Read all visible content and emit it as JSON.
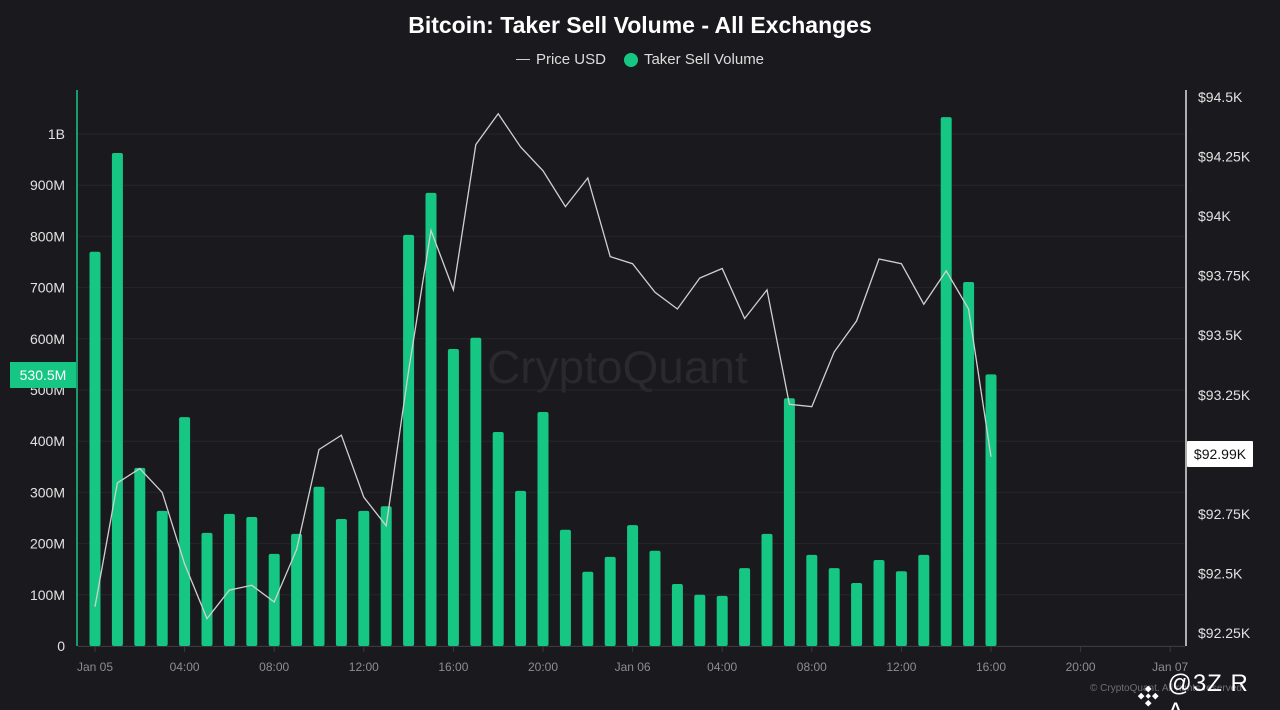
{
  "title": "Bitcoin: Taker Sell Volume - All Exchanges",
  "legend": [
    {
      "label": "Price USD",
      "marker": "line",
      "color": "#cfcfcf"
    },
    {
      "label": "Taker Sell Volume",
      "marker": "dot",
      "color": "#16c784"
    }
  ],
  "watermark": "CryptoQuant",
  "copyright": "© CryptoQuant. All rights reserved",
  "user_watermark": "@3Z R A_",
  "colors": {
    "background": "#1a191d",
    "bar": "#16c784",
    "line": "#d0d0d0",
    "grid": "#26252a"
  },
  "current_labels": {
    "volume": "530.5M",
    "price": "$92.99K"
  },
  "chart_data": {
    "type": "bar",
    "title": "Bitcoin: Taker Sell Volume - All Exchanges",
    "xlabel": "",
    "ylabel": "Taker Sell Volume",
    "y2label": "Price USD",
    "ylim": [
      0,
      1050000000
    ],
    "y2lim": [
      92200,
      94560
    ],
    "grid": true,
    "legend_position": "top",
    "x_ticks": [
      "Jan 05",
      "04:00",
      "08:00",
      "12:00",
      "16:00",
      "20:00",
      "Jan 06",
      "04:00",
      "08:00",
      "12:00",
      "16:00",
      "20:00",
      "Jan 07"
    ],
    "y_ticks": [
      "0",
      "100M",
      "200M",
      "300M",
      "400M",
      "500M",
      "600M",
      "700M",
      "800M",
      "900M",
      "1B"
    ],
    "y2_ticks": [
      "$92.25K",
      "$92.5K",
      "$92.75K",
      "$93K",
      "$93.25K",
      "$93.5K",
      "$93.75K",
      "$94K",
      "$94.25K",
      "$94.5K"
    ],
    "x": [
      "Jan 05 00:00",
      "01:00",
      "02:00",
      "03:00",
      "04:00",
      "05:00",
      "06:00",
      "07:00",
      "08:00",
      "09:00",
      "10:00",
      "11:00",
      "12:00",
      "13:00",
      "14:00",
      "15:00",
      "16:00",
      "17:00",
      "18:00",
      "19:00",
      "20:00",
      "21:00",
      "22:00",
      "23:00",
      "Jan 06 00:00",
      "01:00",
      "02:00",
      "03:00",
      "04:00",
      "05:00",
      "06:00",
      "07:00",
      "08:00",
      "09:00",
      "10:00",
      "11:00",
      "12:00",
      "13:00",
      "14:00",
      "15:00",
      "16:00"
    ],
    "series": [
      {
        "name": "Taker Sell Volume",
        "type": "bar",
        "axis": "left",
        "values": [
          770000000,
          963000000,
          348000000,
          264000000,
          447000000,
          221000000,
          258000000,
          252000000,
          180000000,
          219000000,
          311000000,
          248000000,
          264000000,
          273000000,
          803000000,
          885000000,
          580000000,
          602000000,
          418000000,
          303000000,
          457000000,
          227000000,
          145000000,
          174000000,
          236000000,
          186000000,
          121000000,
          100000000,
          98000000,
          152000000,
          219000000,
          484000000,
          178000000,
          152000000,
          123000000,
          168000000,
          146000000,
          178000000,
          1033000000,
          711000000,
          530500000
        ]
      },
      {
        "name": "Price USD",
        "type": "line",
        "axis": "right",
        "values": [
          92360,
          92880,
          92940,
          92840,
          92540,
          92310,
          92430,
          92450,
          92380,
          92600,
          93020,
          93080,
          92820,
          92700,
          93350,
          93940,
          93690,
          94300,
          94430,
          94290,
          94190,
          94040,
          94160,
          93830,
          93800,
          93680,
          93610,
          93740,
          93780,
          93570,
          93690,
          93210,
          93200,
          93430,
          93560,
          93820,
          93800,
          93630,
          93770,
          93610,
          92990
        ]
      }
    ]
  }
}
